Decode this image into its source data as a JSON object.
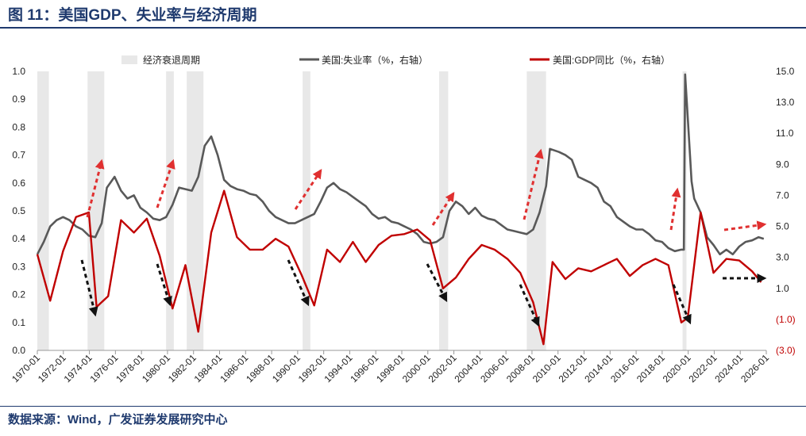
{
  "header": {
    "title": "图 11：美国GDP、失业率与经济周期"
  },
  "footer": {
    "source": "数据来源：Wind，广发证券发展研究中心"
  },
  "colors": {
    "title": "#1f3a6e",
    "unemployment": "#595959",
    "gdp": "#c00000",
    "recession": "#e8e8e8",
    "red_arrow": "#e03030",
    "black_arrow": "#111111",
    "neg_label": "#c00000"
  },
  "chart_data": {
    "type": "line",
    "title": "美国GDP、失业率与经济周期",
    "legend": [
      "经济衰退周期",
      "美国:失业率（%，右轴）",
      "美国:GDP同比（%，右轴）"
    ],
    "x_tick_labels": [
      "1970-01",
      "1972-01",
      "1974-01",
      "1976-01",
      "1978-01",
      "1980-01",
      "1982-01",
      "1984-01",
      "1986-01",
      "1988-01",
      "1990-01",
      "1992-01",
      "1994-01",
      "1996-01",
      "1998-01",
      "2000-01",
      "2002-01",
      "2004-01",
      "2006-01",
      "2008-01",
      "2010-01",
      "2012-01",
      "2014-01",
      "2016-01",
      "2018-01",
      "2020-01",
      "2022-01",
      "2024-01",
      "2026-01"
    ],
    "x_range": [
      1970.0,
      2026.6
    ],
    "left_axis": {
      "range": [
        0,
        1
      ],
      "ticks": [
        "0.0",
        "0.1",
        "0.2",
        "0.3",
        "0.4",
        "0.5",
        "0.6",
        "0.7",
        "0.8",
        "0.9",
        "1.0"
      ]
    },
    "right_axis": {
      "range": [
        -3,
        15
      ],
      "ticks": [
        {
          "v": 15,
          "label": "15.0"
        },
        {
          "v": 13,
          "label": "13.0"
        },
        {
          "v": 11,
          "label": "11.0"
        },
        {
          "v": 9,
          "label": "9.0"
        },
        {
          "v": 7,
          "label": "7.0"
        },
        {
          "v": 5,
          "label": "5.0"
        },
        {
          "v": 3,
          "label": "3.0"
        },
        {
          "v": 1,
          "label": "1.0"
        },
        {
          "v": -1,
          "label": "(1.0)"
        },
        {
          "v": -3,
          "label": "(3.0)"
        }
      ]
    },
    "recessions": [
      [
        1970.0,
        1970.9
      ],
      [
        1973.9,
        1975.2
      ],
      [
        1980.0,
        1980.6
      ],
      [
        1981.6,
        1982.9
      ],
      [
        1990.6,
        1991.2
      ],
      [
        2001.2,
        2001.9
      ],
      [
        2008.0,
        2009.5
      ],
      [
        2020.1,
        2020.4
      ]
    ],
    "series": [
      {
        "name": "美国:失业率（%，右轴）",
        "axis": "right",
        "x": [
          1970.0,
          1970.5,
          1971.0,
          1971.5,
          1972.0,
          1972.5,
          1973.0,
          1973.5,
          1974.0,
          1974.5,
          1975.0,
          1975.4,
          1976.0,
          1976.5,
          1977.0,
          1977.5,
          1978.0,
          1978.5,
          1979.0,
          1979.5,
          1980.0,
          1980.5,
          1981.0,
          1981.5,
          1982.0,
          1982.5,
          1983.0,
          1983.5,
          1984.0,
          1984.5,
          1985.0,
          1985.5,
          1986.0,
          1986.5,
          1987.0,
          1987.5,
          1988.0,
          1988.5,
          1989.0,
          1989.5,
          1990.0,
          1990.5,
          1991.0,
          1991.5,
          1992.0,
          1992.5,
          1993.0,
          1993.5,
          1994.0,
          1994.5,
          1995.0,
          1995.5,
          1996.0,
          1996.5,
          1997.0,
          1997.5,
          1998.0,
          1998.5,
          1999.0,
          1999.5,
          2000.0,
          2000.5,
          2001.0,
          2001.5,
          2002.0,
          2002.5,
          2003.0,
          2003.5,
          2004.0,
          2004.5,
          2005.0,
          2005.5,
          2006.0,
          2006.5,
          2007.0,
          2007.5,
          2008.0,
          2008.5,
          2009.0,
          2009.5,
          2009.8,
          2010.5,
          2011.0,
          2011.5,
          2012.0,
          2012.5,
          2013.0,
          2013.5,
          2014.0,
          2014.5,
          2015.0,
          2015.5,
          2016.0,
          2016.5,
          2017.0,
          2017.5,
          2018.0,
          2018.5,
          2019.0,
          2019.5,
          2020.0,
          2020.2,
          2020.3,
          2020.5,
          2020.8,
          2021.0,
          2021.5,
          2022.0,
          2022.5,
          2023.0,
          2023.5,
          2024.0,
          2024.5,
          2025.0,
          2025.5,
          2026.0,
          2026.4
        ],
        "values": [
          3.2,
          4.0,
          5.0,
          5.4,
          5.6,
          5.4,
          5.0,
          4.8,
          4.4,
          4.3,
          5.2,
          7.5,
          8.2,
          7.3,
          6.8,
          7.0,
          6.2,
          5.9,
          5.5,
          5.4,
          5.6,
          6.4,
          7.5,
          7.4,
          7.3,
          8.2,
          10.2,
          10.8,
          9.6,
          8.0,
          7.6,
          7.4,
          7.3,
          7.1,
          7.0,
          6.6,
          6.0,
          5.6,
          5.4,
          5.2,
          5.2,
          5.4,
          5.6,
          5.8,
          6.6,
          7.5,
          7.8,
          7.4,
          7.2,
          6.9,
          6.6,
          6.3,
          5.8,
          5.5,
          5.6,
          5.3,
          5.2,
          5.0,
          4.8,
          4.5,
          4.0,
          3.9,
          4.0,
          4.3,
          6.0,
          6.6,
          6.3,
          5.8,
          6.2,
          5.7,
          5.5,
          5.4,
          5.1,
          4.8,
          4.7,
          4.6,
          4.5,
          4.8,
          5.9,
          7.6,
          10.0,
          9.8,
          9.6,
          9.3,
          8.2,
          8.0,
          7.8,
          7.5,
          6.6,
          6.3,
          5.6,
          5.3,
          5.0,
          4.8,
          4.8,
          4.5,
          4.1,
          4.0,
          3.6,
          3.4,
          3.5,
          3.5,
          14.8,
          12.0,
          7.9,
          6.8,
          5.9,
          4.3,
          3.8,
          3.2,
          3.5,
          3.2,
          3.7,
          4.0,
          4.1,
          4.3,
          4.2
        ]
      },
      {
        "name": "美国:GDP同比（%，右轴）",
        "axis": "right",
        "x": [
          1970.0,
          1971.0,
          1972.0,
          1973.0,
          1974.0,
          1974.6,
          1975.5,
          1976.5,
          1977.5,
          1978.5,
          1979.5,
          1980.5,
          1981.5,
          1982.5,
          1983.5,
          1984.5,
          1985.5,
          1986.5,
          1987.5,
          1988.5,
          1989.5,
          1990.5,
          1991.5,
          1992.5,
          1993.5,
          1994.5,
          1995.5,
          1996.5,
          1997.5,
          1998.5,
          1999.5,
          2000.5,
          2001.5,
          2002.5,
          2003.5,
          2004.5,
          2005.5,
          2006.5,
          2007.5,
          2008.5,
          2009.3,
          2010.0,
          2011.0,
          2012.0,
          2013.0,
          2014.0,
          2015.0,
          2016.0,
          2017.0,
          2018.0,
          2019.0,
          2020.0,
          2020.5,
          2021.5,
          2022.5,
          2023.5,
          2024.5,
          2025.5,
          2026.2
        ],
        "values": [
          3.2,
          0.2,
          3.4,
          5.6,
          5.9,
          -0.2,
          0.5,
          5.4,
          4.6,
          5.5,
          3.1,
          -0.3,
          2.5,
          -1.8,
          4.6,
          7.3,
          4.3,
          3.5,
          3.5,
          4.2,
          3.7,
          1.9,
          -0.1,
          3.5,
          2.7,
          4.0,
          2.7,
          3.8,
          4.4,
          4.5,
          4.8,
          4.1,
          1.0,
          1.7,
          2.9,
          3.8,
          3.5,
          2.9,
          2.0,
          0.1,
          -2.6,
          2.7,
          1.6,
          2.3,
          2.1,
          2.5,
          2.9,
          1.8,
          2.5,
          2.9,
          2.5,
          -1.2,
          -0.9,
          5.9,
          2.0,
          2.9,
          2.8,
          2.1,
          1.4
        ]
      }
    ]
  }
}
